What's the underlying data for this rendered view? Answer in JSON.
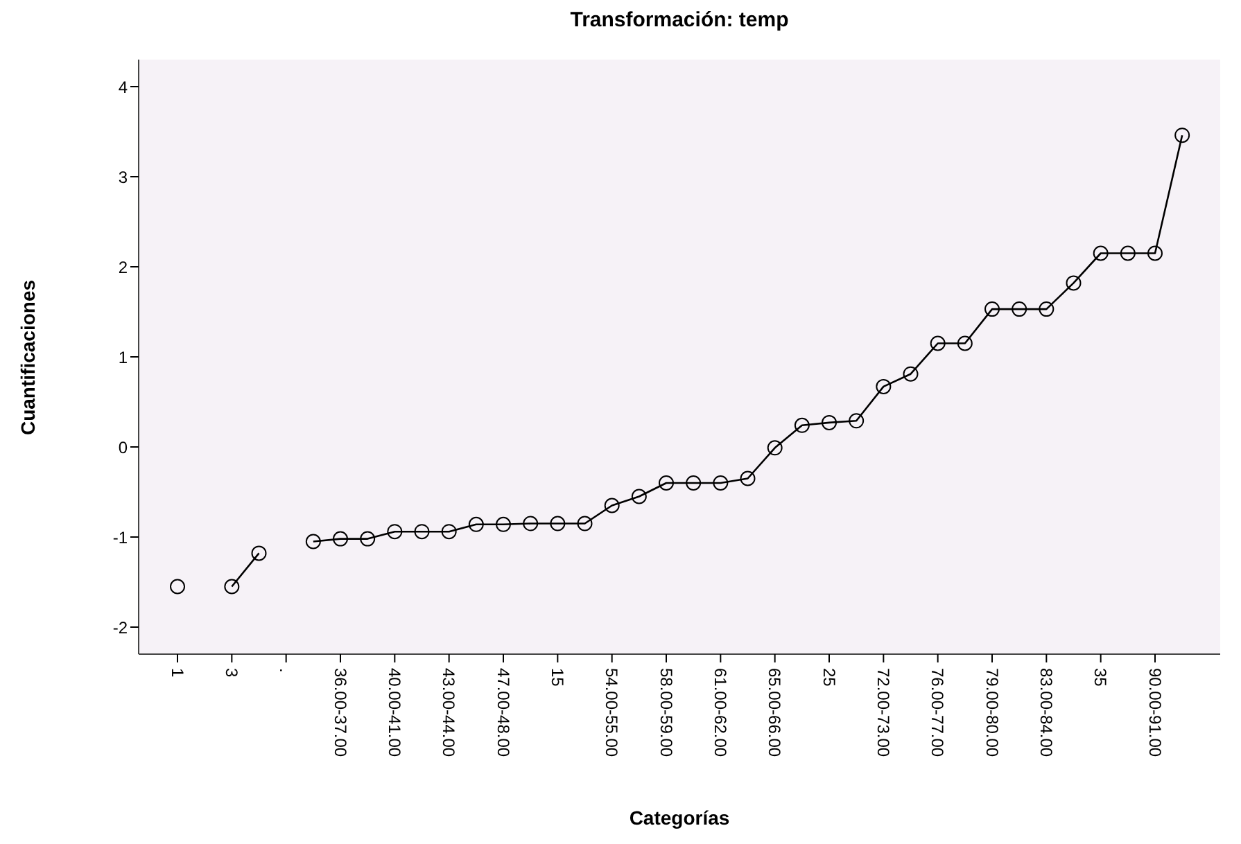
{
  "chart_data": {
    "type": "line",
    "title": "Transformación: temp",
    "xlabel": "Categorías",
    "ylabel": "Cuantificaciones",
    "categories": [
      "1",
      null,
      "3",
      null,
      ".",
      null,
      "36.00-37.00",
      null,
      "40.00-41.00",
      null,
      "43.00-44.00",
      null,
      "47.00-48.00",
      null,
      "15",
      null,
      "54.00-55.00",
      null,
      "58.00-59.00",
      null,
      "61.00-62.00",
      null,
      "65.00-66.00",
      null,
      "25",
      null,
      "72.00-73.00",
      null,
      "76.00-77.00",
      null,
      "79.00-80.00",
      null,
      "83.00-84.00",
      null,
      "35",
      null,
      "90.00-91.00",
      null
    ],
    "series": [
      {
        "color": "#000000",
        "values": [
          -1.55,
          null,
          -1.55,
          -1.18,
          null,
          -1.05,
          -1.02,
          -1.02,
          -0.94,
          -0.94,
          -0.94,
          -0.86,
          -0.86,
          -0.85,
          -0.85,
          -0.85,
          -0.65,
          -0.55,
          -0.4,
          -0.4,
          -0.4,
          -0.35,
          -0.01,
          0.24,
          0.27,
          0.29,
          0.67,
          0.81,
          1.15,
          1.15,
          1.53,
          1.53,
          1.53,
          1.82,
          2.15,
          2.15,
          2.15,
          3.46
        ]
      }
    ],
    "ylim": [
      -2.3,
      4.3
    ],
    "yticks": [
      -2,
      -1,
      0,
      1,
      2,
      3,
      4
    ],
    "grid": false,
    "marker": "circle",
    "line_style": "solid"
  }
}
